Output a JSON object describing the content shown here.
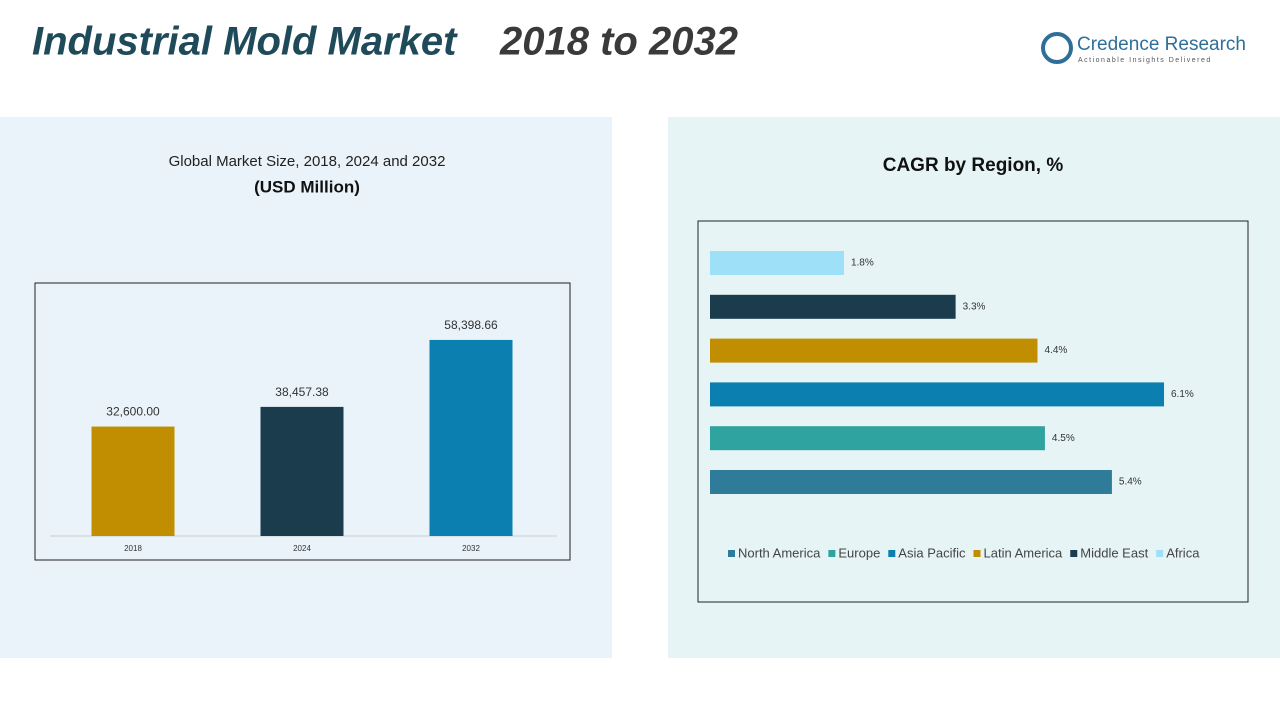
{
  "header": {
    "title": "Industrial Mold Market",
    "title_years": "2018 to 2032",
    "logo_name": "Credence Research",
    "logo_tagline": "Actionable Insights Delivered"
  },
  "chart_data": [
    {
      "type": "bar",
      "title": "Global Market Size, 2018, 2024 and 2032",
      "subtitle": "(USD Million)",
      "categories": [
        "2018",
        "2024",
        "2032"
      ],
      "values": [
        32600,
        38457.38,
        58398.66
      ],
      "value_labels": [
        "32,600.00",
        "38,457.38",
        "58,398.66"
      ],
      "colors": [
        "#c08e00",
        "#1a3c4d",
        "#0a7fb0"
      ],
      "ylim": [
        0,
        70000
      ]
    },
    {
      "type": "barh",
      "title": "CAGR by Region, %",
      "categories": [
        "North America",
        "Europe",
        "Asia Pacific",
        "Latin America",
        "Middle East",
        "Africa"
      ],
      "values": [
        5.4,
        4.5,
        6.1,
        4.4,
        3.3,
        1.8
      ],
      "value_labels": [
        "5.4%",
        "4.5%",
        "6.1%",
        "4.4%",
        "3.3%",
        "1.8%"
      ],
      "colors": [
        "#2e7b9a",
        "#2fa3a0",
        "#0a7fb0",
        "#c08e00",
        "#1a3c4d",
        "#9ee0f7"
      ],
      "xlim": [
        0,
        7
      ],
      "legend": "bottom"
    }
  ]
}
